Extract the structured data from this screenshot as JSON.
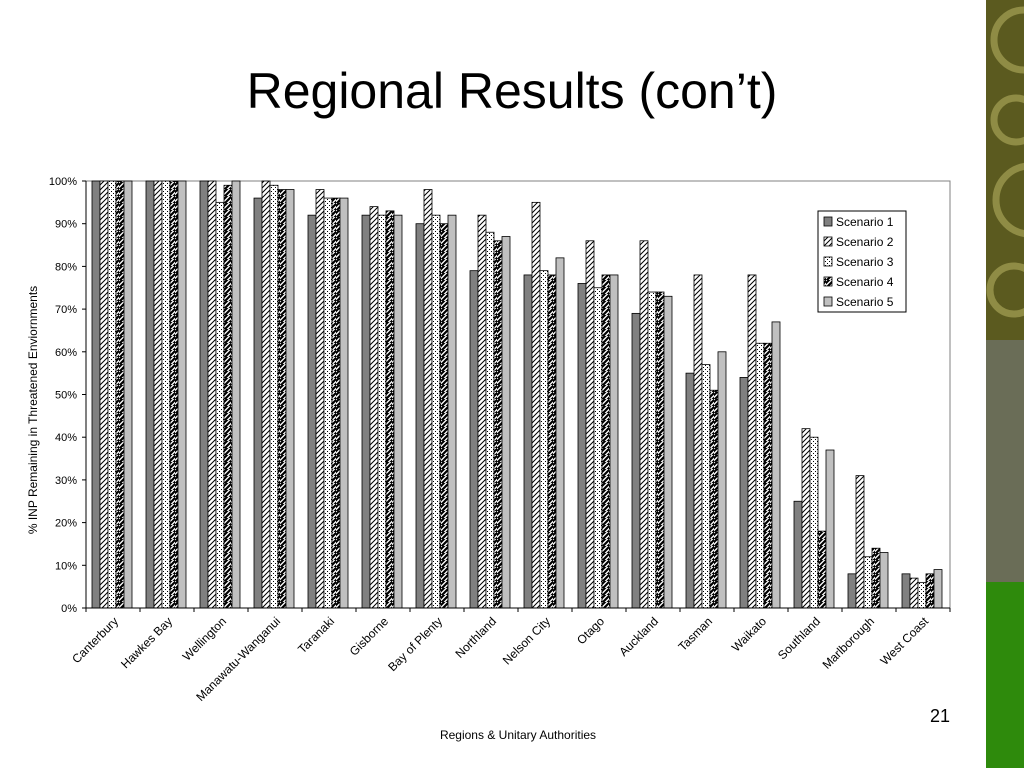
{
  "slide": {
    "title": "Regional Results (con’t)",
    "page_number": "21"
  },
  "colors": {
    "scenario_1": "#808080",
    "scenario_5": "#c0c0c0",
    "band_top": "#5b5a1f",
    "band_middle": "#6a6d57",
    "band_bottom": "#2e8a0c"
  },
  "chart_data": {
    "type": "bar",
    "title": "",
    "xlabel": "Regions & Unitary Authorities",
    "ylabel": "% INP Remaining in Threatened Enviornments",
    "ylim": [
      0,
      100
    ],
    "y_ticks": [
      "0%",
      "10%",
      "20%",
      "30%",
      "40%",
      "50%",
      "60%",
      "70%",
      "80%",
      "90%",
      "100%"
    ],
    "grid": false,
    "legend_position": "right",
    "categories": [
      "Canterbury",
      "Hawkes Bay",
      "Wellington",
      "Manawatu-Wanganui",
      "Taranaki",
      "Gisborne",
      "Bay of Plenty",
      "Northland",
      "Nelson City",
      "Otago",
      "Auckland",
      "Tasman",
      "Waikato",
      "Southland",
      "Marlborough",
      "West Coast"
    ],
    "series": [
      {
        "name": "Scenario 1",
        "values": [
          100,
          100,
          100,
          96,
          92,
          92,
          90,
          79,
          78,
          76,
          69,
          55,
          54,
          25,
          8,
          8
        ]
      },
      {
        "name": "Scenario 2",
        "values": [
          100,
          100,
          100,
          100,
          98,
          94,
          98,
          92,
          95,
          86,
          86,
          78,
          78,
          42,
          31,
          7
        ]
      },
      {
        "name": "Scenario 3",
        "values": [
          100,
          100,
          95,
          99,
          96,
          92,
          92,
          88,
          79,
          75,
          74,
          57,
          62,
          40,
          12,
          6
        ]
      },
      {
        "name": "Scenario 4",
        "values": [
          100,
          100,
          99,
          98,
          96,
          93,
          90,
          86,
          78,
          78,
          74,
          51,
          62,
          18,
          14,
          8
        ]
      },
      {
        "name": "Scenario 5",
        "values": [
          100,
          100,
          100,
          98,
          96,
          92,
          92,
          87,
          82,
          78,
          73,
          60,
          67,
          37,
          13,
          9
        ]
      }
    ]
  }
}
